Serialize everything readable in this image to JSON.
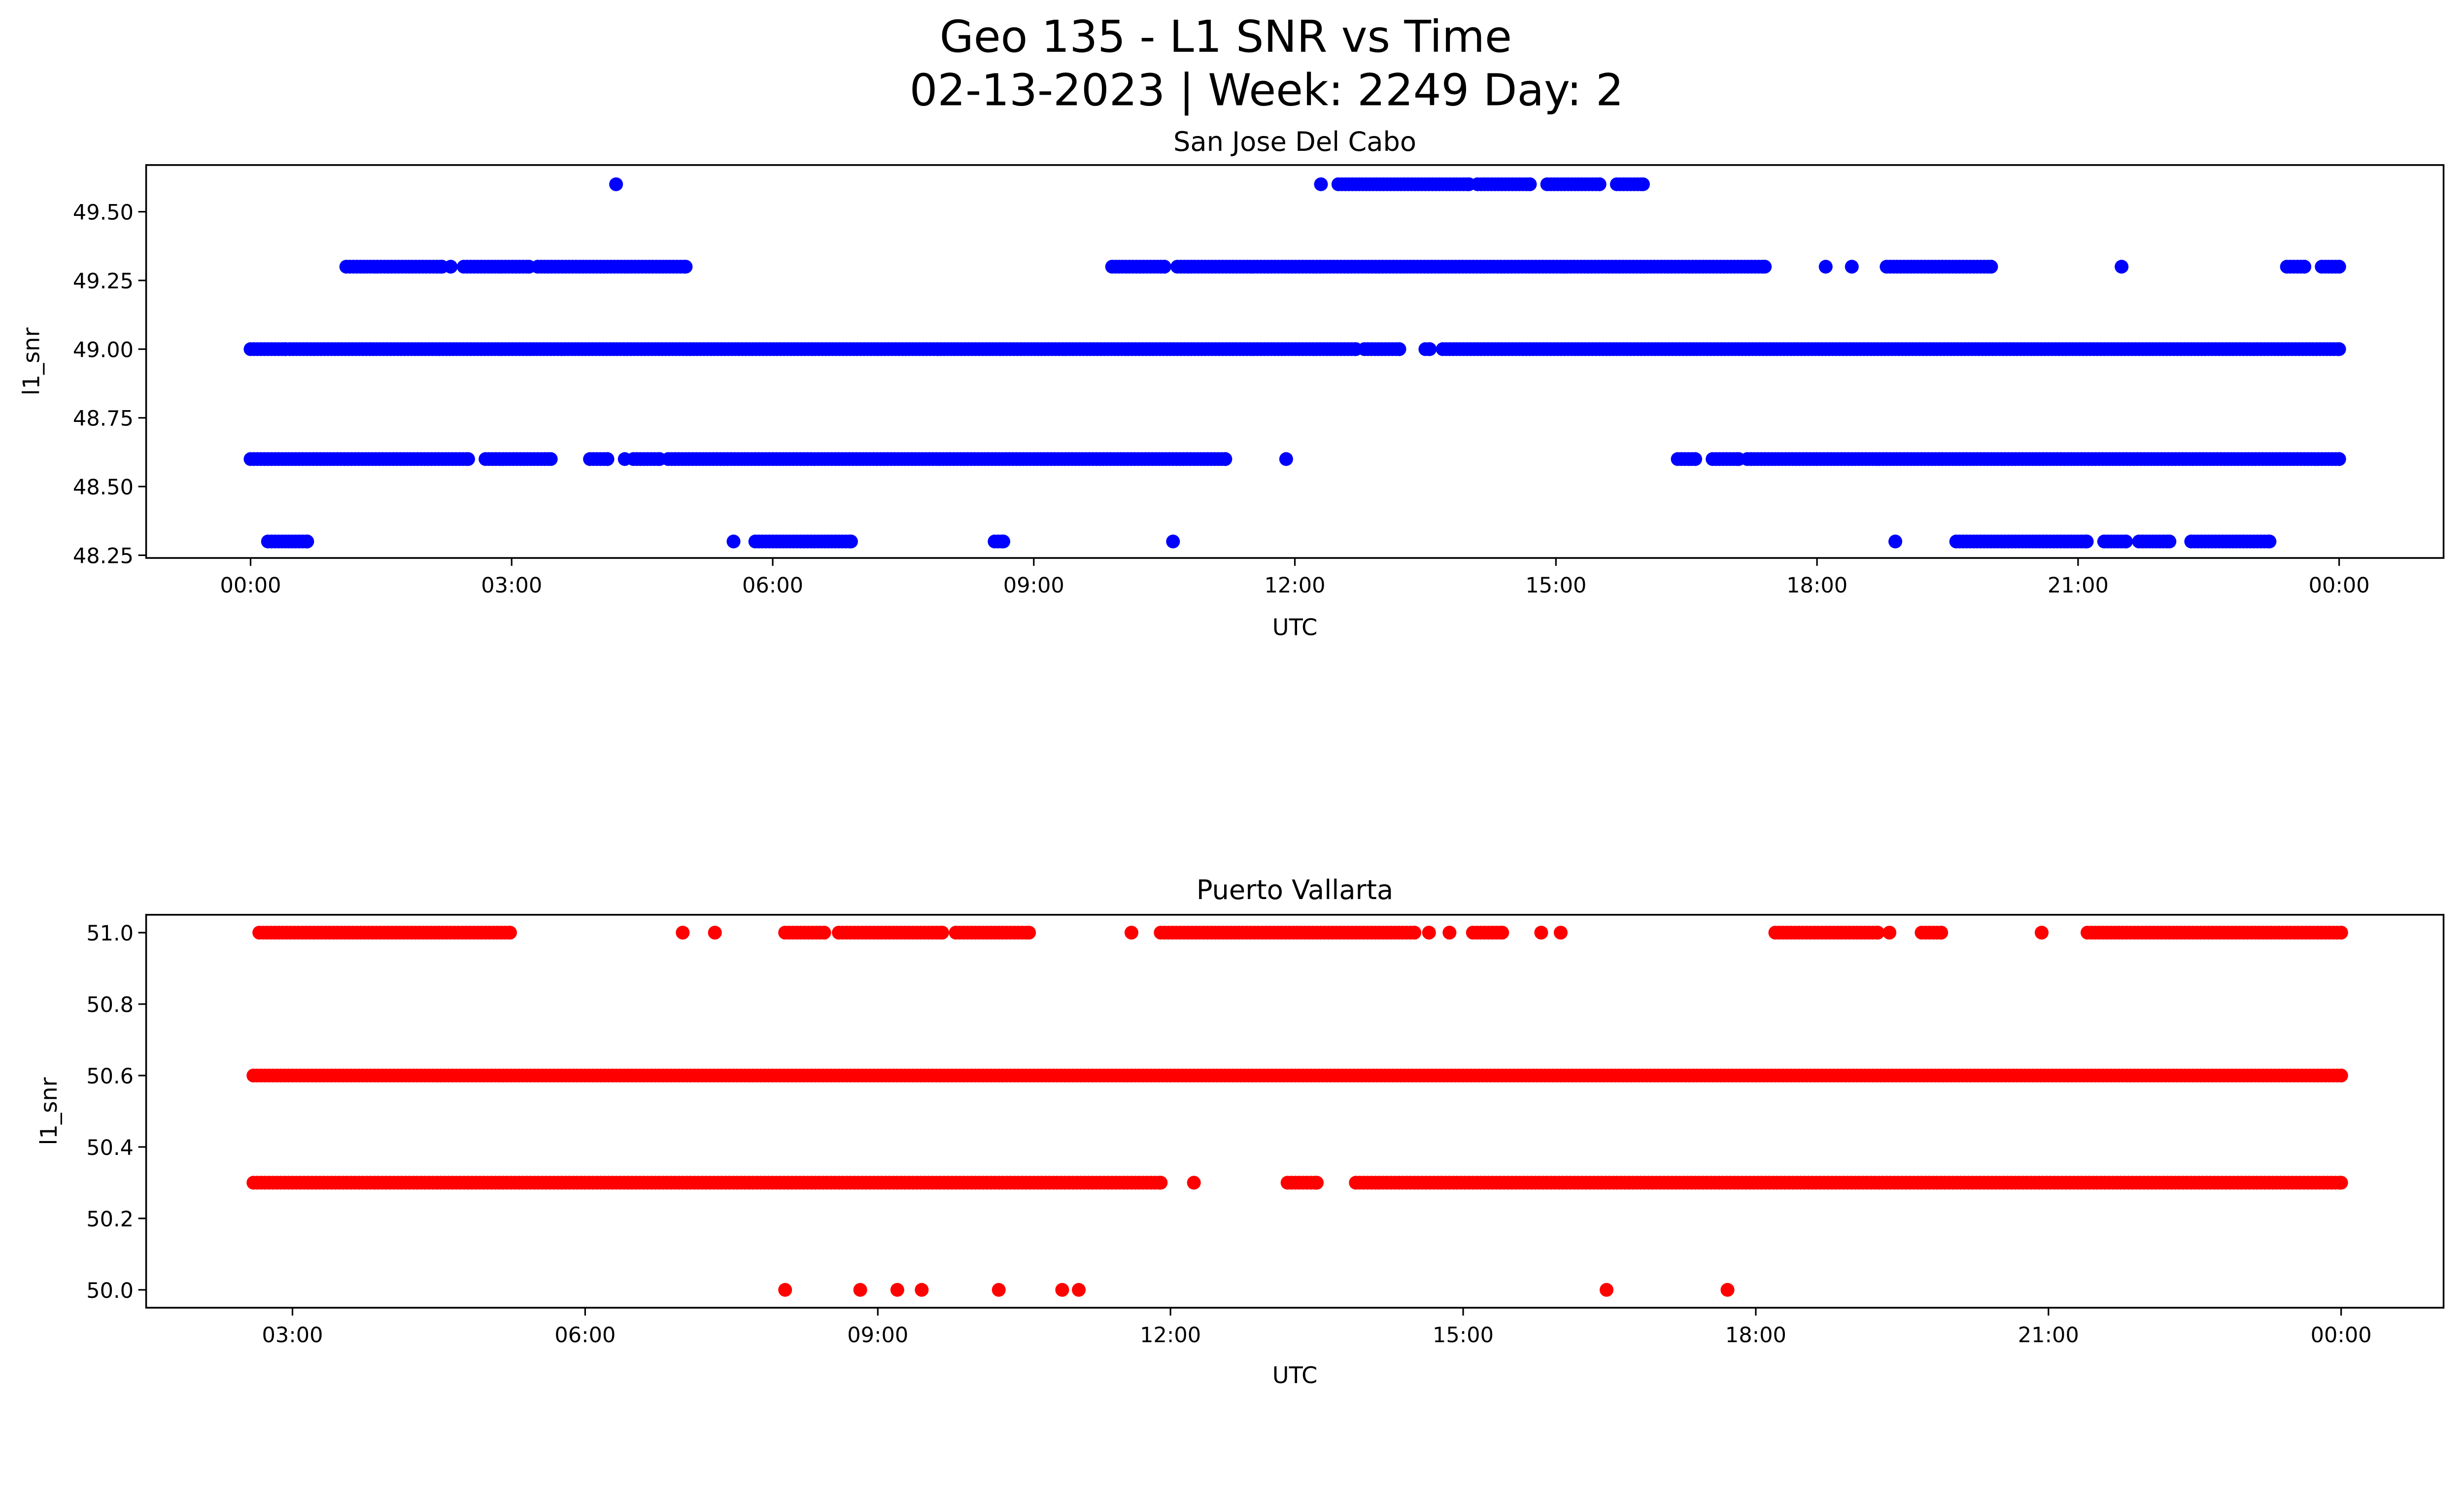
{
  "figure": {
    "title_line1": "Geo 135 - L1 SNR vs Time",
    "title_line2": "02-13-2023 | Week: 2249 Day: 2"
  },
  "chart_data": [
    {
      "type": "scatter",
      "title": "San Jose Del Cabo",
      "xlabel": "UTC",
      "ylabel": "l1_snr",
      "color": "#0000ff",
      "x_units": "hours UTC",
      "xlim": [
        -1.2,
        25.2
      ],
      "ylim": [
        48.24,
        49.67
      ],
      "xticks": [
        0,
        3,
        6,
        9,
        12,
        15,
        18,
        21,
        24
      ],
      "xtick_labels": [
        "00:00",
        "03:00",
        "06:00",
        "09:00",
        "12:00",
        "15:00",
        "18:00",
        "21:00",
        "00:00"
      ],
      "yticks": [
        48.25,
        48.5,
        48.75,
        49.0,
        49.25,
        49.5
      ],
      "ytick_labels": [
        "48.25",
        "48.50",
        "48.75",
        "49.00",
        "49.25",
        "49.50"
      ],
      "runs": [
        [
          49.6,
          12.5,
          14.0
        ],
        [
          49.6,
          14.1,
          14.7
        ],
        [
          49.6,
          14.9,
          15.5
        ],
        [
          49.6,
          15.7,
          16.0
        ],
        [
          49.3,
          1.1,
          2.2
        ],
        [
          49.3,
          2.45,
          3.2
        ],
        [
          49.3,
          3.3,
          5.0
        ],
        [
          49.3,
          9.9,
          10.5
        ],
        [
          49.3,
          10.65,
          17.4
        ],
        [
          49.3,
          18.8,
          20.0
        ],
        [
          49.3,
          23.4,
          23.6
        ],
        [
          49.3,
          23.8,
          24.0
        ],
        [
          49.0,
          0.0,
          0.4
        ],
        [
          49.0,
          0.45,
          12.7
        ],
        [
          49.0,
          12.8,
          13.2
        ],
        [
          49.0,
          13.5,
          13.55
        ],
        [
          49.0,
          13.7,
          24.0
        ],
        [
          48.6,
          0.0,
          2.5
        ],
        [
          48.6,
          2.7,
          3.45
        ],
        [
          48.6,
          3.9,
          4.1
        ],
        [
          48.6,
          4.4,
          4.7
        ],
        [
          48.6,
          4.8,
          11.2
        ],
        [
          48.6,
          16.4,
          16.6
        ],
        [
          48.6,
          16.8,
          17.1
        ],
        [
          48.6,
          17.2,
          24.0
        ],
        [
          48.3,
          0.2,
          0.65
        ],
        [
          48.3,
          5.8,
          6.9
        ],
        [
          48.3,
          8.55,
          8.65
        ],
        [
          48.3,
          19.6,
          21.1
        ],
        [
          48.3,
          21.3,
          21.55
        ],
        [
          48.3,
          21.7,
          22.05
        ],
        [
          48.3,
          22.3,
          23.2
        ]
      ],
      "points": [
        [
          4.2,
          49.6
        ],
        [
          12.3,
          49.6
        ],
        [
          18.1,
          49.3
        ],
        [
          18.4,
          49.3
        ],
        [
          21.5,
          49.3
        ],
        [
          2.3,
          49.3
        ],
        [
          11.9,
          48.6
        ],
        [
          4.3,
          48.6
        ],
        [
          5.55,
          48.3
        ],
        [
          10.6,
          48.3
        ],
        [
          18.9,
          48.3
        ],
        [
          0.65,
          48.3
        ]
      ]
    },
    {
      "type": "scatter",
      "title": "Puerto Vallarta",
      "xlabel": "UTC",
      "ylabel": "l1_snr",
      "color": "#ff0000",
      "x_units": "hours UTC",
      "xlim": [
        1.5,
        25.05
      ],
      "ylim": [
        49.95,
        51.05
      ],
      "xticks": [
        3,
        6,
        9,
        12,
        15,
        18,
        21,
        24
      ],
      "xtick_labels": [
        "03:00",
        "06:00",
        "09:00",
        "12:00",
        "15:00",
        "18:00",
        "21:00",
        "00:00"
      ],
      "yticks": [
        50.0,
        50.2,
        50.4,
        50.6,
        50.8,
        51.0
      ],
      "ytick_labels": [
        "50.0",
        "50.2",
        "50.4",
        "50.6",
        "50.8",
        "51.0"
      ],
      "runs": [
        [
          51.0,
          2.66,
          5.23
        ],
        [
          51.0,
          8.05,
          8.45
        ],
        [
          51.0,
          8.6,
          9.66
        ],
        [
          51.0,
          9.8,
          10.55
        ],
        [
          51.0,
          11.9,
          14.5
        ],
        [
          51.0,
          15.1,
          15.4
        ],
        [
          51.0,
          18.2,
          19.25
        ],
        [
          51.0,
          19.7,
          19.9
        ],
        [
          51.0,
          21.4,
          24.0
        ],
        [
          50.6,
          2.6,
          24.0
        ],
        [
          50.3,
          2.6,
          11.9
        ],
        [
          50.3,
          13.2,
          13.5
        ],
        [
          50.3,
          13.9,
          24.0
        ]
      ],
      "points": [
        [
          7.0,
          51.0
        ],
        [
          7.33,
          51.0
        ],
        [
          11.6,
          51.0
        ],
        [
          14.65,
          51.0
        ],
        [
          14.86,
          51.0
        ],
        [
          15.8,
          51.0
        ],
        [
          16.0,
          51.0
        ],
        [
          19.37,
          51.0
        ],
        [
          20.93,
          51.0
        ],
        [
          12.24,
          50.3
        ],
        [
          8.05,
          50.0
        ],
        [
          8.82,
          50.0
        ],
        [
          9.2,
          50.0
        ],
        [
          9.45,
          50.0
        ],
        [
          10.24,
          50.0
        ],
        [
          10.89,
          50.0
        ],
        [
          11.06,
          50.0
        ],
        [
          16.47,
          50.0
        ],
        [
          17.71,
          50.0
        ]
      ]
    }
  ]
}
